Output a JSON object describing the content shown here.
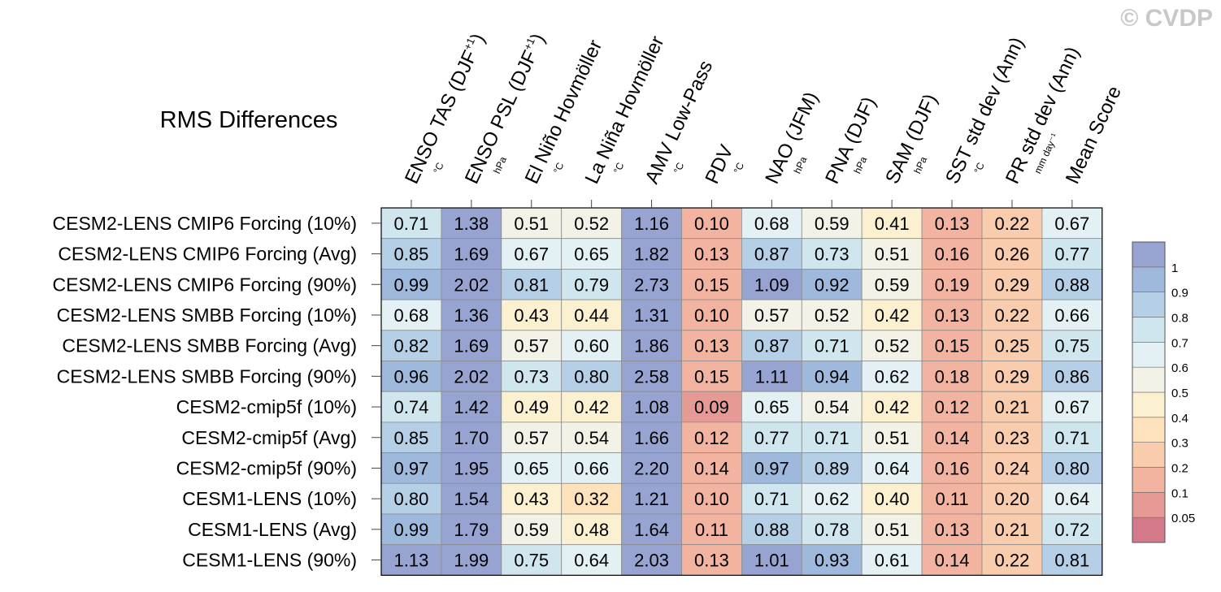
{
  "watermark": "© CVDP",
  "chart_data": {
    "type": "heatmap",
    "title": "RMS Differences",
    "columns": [
      {
        "label": "ENSO TAS (DJF",
        "sup": "+1",
        "close": ")",
        "unit": "°C"
      },
      {
        "label": "ENSO PSL (DJF",
        "sup": "+1",
        "close": ")",
        "unit": "hPa"
      },
      {
        "label": "El Niño Hovmöller",
        "sup": "",
        "close": "",
        "unit": "°C"
      },
      {
        "label": "La Niña Hovmöller",
        "sup": "",
        "close": "",
        "unit": "°C"
      },
      {
        "label": "AMV Low-Pass",
        "sup": "",
        "close": "",
        "unit": "°C"
      },
      {
        "label": "PDV",
        "sup": "",
        "close": "",
        "unit": "°C"
      },
      {
        "label": "NAO (JFM)",
        "sup": "",
        "close": "",
        "unit": "hPa"
      },
      {
        "label": "PNA (DJF)",
        "sup": "",
        "close": "",
        "unit": "hPa"
      },
      {
        "label": "SAM (DJF)",
        "sup": "",
        "close": "",
        "unit": "hPa"
      },
      {
        "label": "SST std dev (Ann)",
        "sup": "",
        "close": "",
        "unit": "°C"
      },
      {
        "label": "PR std dev (Ann)",
        "sup": "",
        "close": "",
        "unit": "mm day⁻¹"
      },
      {
        "label": "Mean Score",
        "sup": "",
        "close": "",
        "unit": ""
      }
    ],
    "rows": [
      "CESM2-LENS CMIP6 Forcing (10%)",
      "CESM2-LENS CMIP6 Forcing (Avg)",
      "CESM2-LENS CMIP6 Forcing (90%)",
      "CESM2-LENS SMBB Forcing (10%)",
      "CESM2-LENS SMBB Forcing (Avg)",
      "CESM2-LENS SMBB Forcing (90%)",
      "CESM2-cmip5f (10%)",
      "CESM2-cmip5f (Avg)",
      "CESM2-cmip5f (90%)",
      "CESM1-LENS (10%)",
      "CESM1-LENS (Avg)",
      "CESM1-LENS (90%)"
    ],
    "values": [
      [
        "0.71",
        "1.38",
        "0.51",
        "0.52",
        "1.16",
        "0.10",
        "0.68",
        "0.59",
        "0.41",
        "0.13",
        "0.22",
        "0.67"
      ],
      [
        "0.85",
        "1.69",
        "0.67",
        "0.65",
        "1.82",
        "0.13",
        "0.87",
        "0.73",
        "0.51",
        "0.16",
        "0.26",
        "0.77"
      ],
      [
        "0.99",
        "2.02",
        "0.81",
        "0.79",
        "2.73",
        "0.15",
        "1.09",
        "0.92",
        "0.59",
        "0.19",
        "0.29",
        "0.88"
      ],
      [
        "0.68",
        "1.36",
        "0.43",
        "0.44",
        "1.31",
        "0.10",
        "0.57",
        "0.52",
        "0.42",
        "0.13",
        "0.22",
        "0.66"
      ],
      [
        "0.82",
        "1.69",
        "0.57",
        "0.60",
        "1.86",
        "0.13",
        "0.87",
        "0.71",
        "0.52",
        "0.15",
        "0.25",
        "0.75"
      ],
      [
        "0.96",
        "2.02",
        "0.73",
        "0.80",
        "2.58",
        "0.15",
        "1.11",
        "0.94",
        "0.62",
        "0.18",
        "0.29",
        "0.86"
      ],
      [
        "0.74",
        "1.42",
        "0.49",
        "0.42",
        "1.08",
        "0.09",
        "0.65",
        "0.54",
        "0.42",
        "0.12",
        "0.21",
        "0.67"
      ],
      [
        "0.85",
        "1.70",
        "0.57",
        "0.54",
        "1.66",
        "0.12",
        "0.77",
        "0.71",
        "0.51",
        "0.14",
        "0.23",
        "0.71"
      ],
      [
        "0.97",
        "1.95",
        "0.65",
        "0.66",
        "2.20",
        "0.14",
        "0.97",
        "0.89",
        "0.64",
        "0.16",
        "0.24",
        "0.80"
      ],
      [
        "0.80",
        "1.54",
        "0.43",
        "0.32",
        "1.21",
        "0.10",
        "0.71",
        "0.62",
        "0.40",
        "0.11",
        "0.20",
        "0.64"
      ],
      [
        "0.99",
        "1.79",
        "0.59",
        "0.48",
        "1.64",
        "0.11",
        "0.88",
        "0.78",
        "0.51",
        "0.13",
        "0.21",
        "0.72"
      ],
      [
        "1.13",
        "1.99",
        "0.75",
        "0.64",
        "2.03",
        "0.13",
        "1.01",
        "0.93",
        "0.61",
        "0.14",
        "0.22",
        "0.81"
      ]
    ],
    "colorbar": {
      "thresholds": [
        0.05,
        0.1,
        0.2,
        0.3,
        0.4,
        0.5,
        0.6,
        0.7,
        0.8,
        0.9,
        1
      ],
      "labels": [
        "0.05",
        "0.1",
        "0.2",
        "0.3",
        "0.4",
        "0.5",
        "0.6",
        "0.7",
        "0.8",
        "0.9",
        "1"
      ],
      "colors": [
        "#d4798a",
        "#e69a96",
        "#f2b3a0",
        "#f8ccac",
        "#fde2bb",
        "#fbf1d1",
        "#f2f2e6",
        "#e4f1f4",
        "#cfe6ef",
        "#b5d0e6",
        "#9fb9dd",
        "#97a4d2"
      ]
    }
  }
}
